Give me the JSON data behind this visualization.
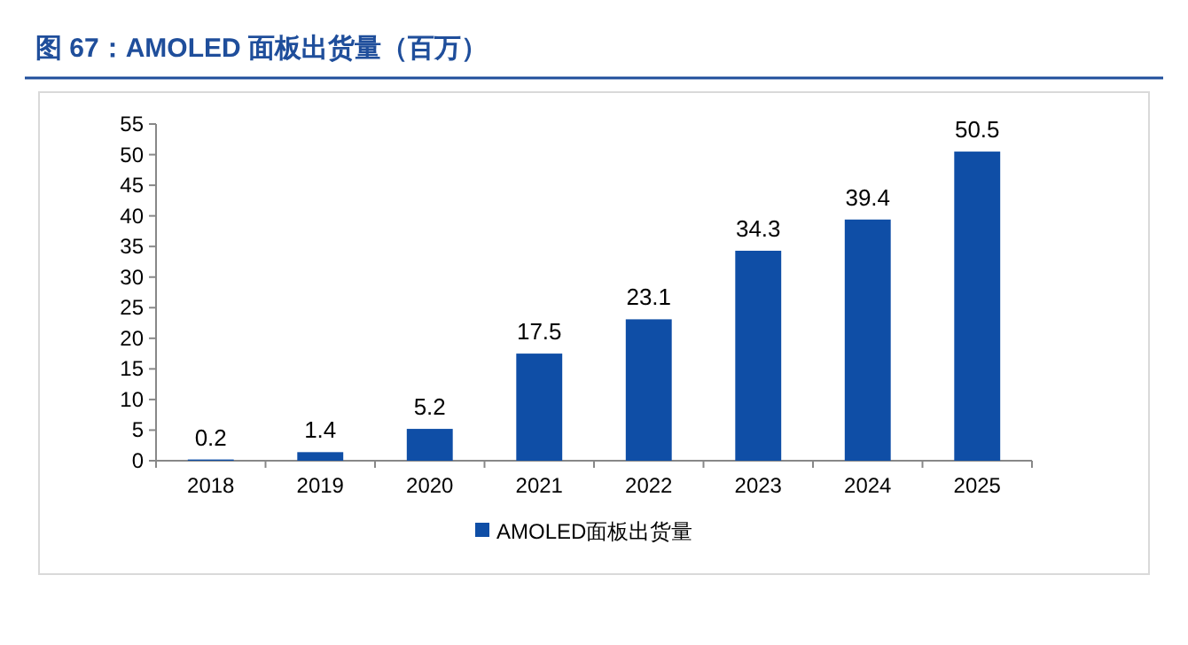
{
  "chart_data": {
    "type": "bar",
    "title": "图 67：AMOLED 面板出货量（百万）",
    "categories": [
      "2018",
      "2019",
      "2020",
      "2021",
      "2022",
      "2023",
      "2024",
      "2025"
    ],
    "series": [
      {
        "name": "AMOLED面板出货量",
        "color": "#0f4ea6",
        "values": [
          0.2,
          1.4,
          5.2,
          17.5,
          23.1,
          34.3,
          39.4,
          50.5
        ]
      }
    ],
    "ylim": [
      0,
      55
    ],
    "yticks": [
      0,
      5,
      10,
      15,
      20,
      25,
      30,
      35,
      40,
      45,
      50,
      55
    ],
    "data_labels": true,
    "legend": "bottom",
    "grid": false
  }
}
